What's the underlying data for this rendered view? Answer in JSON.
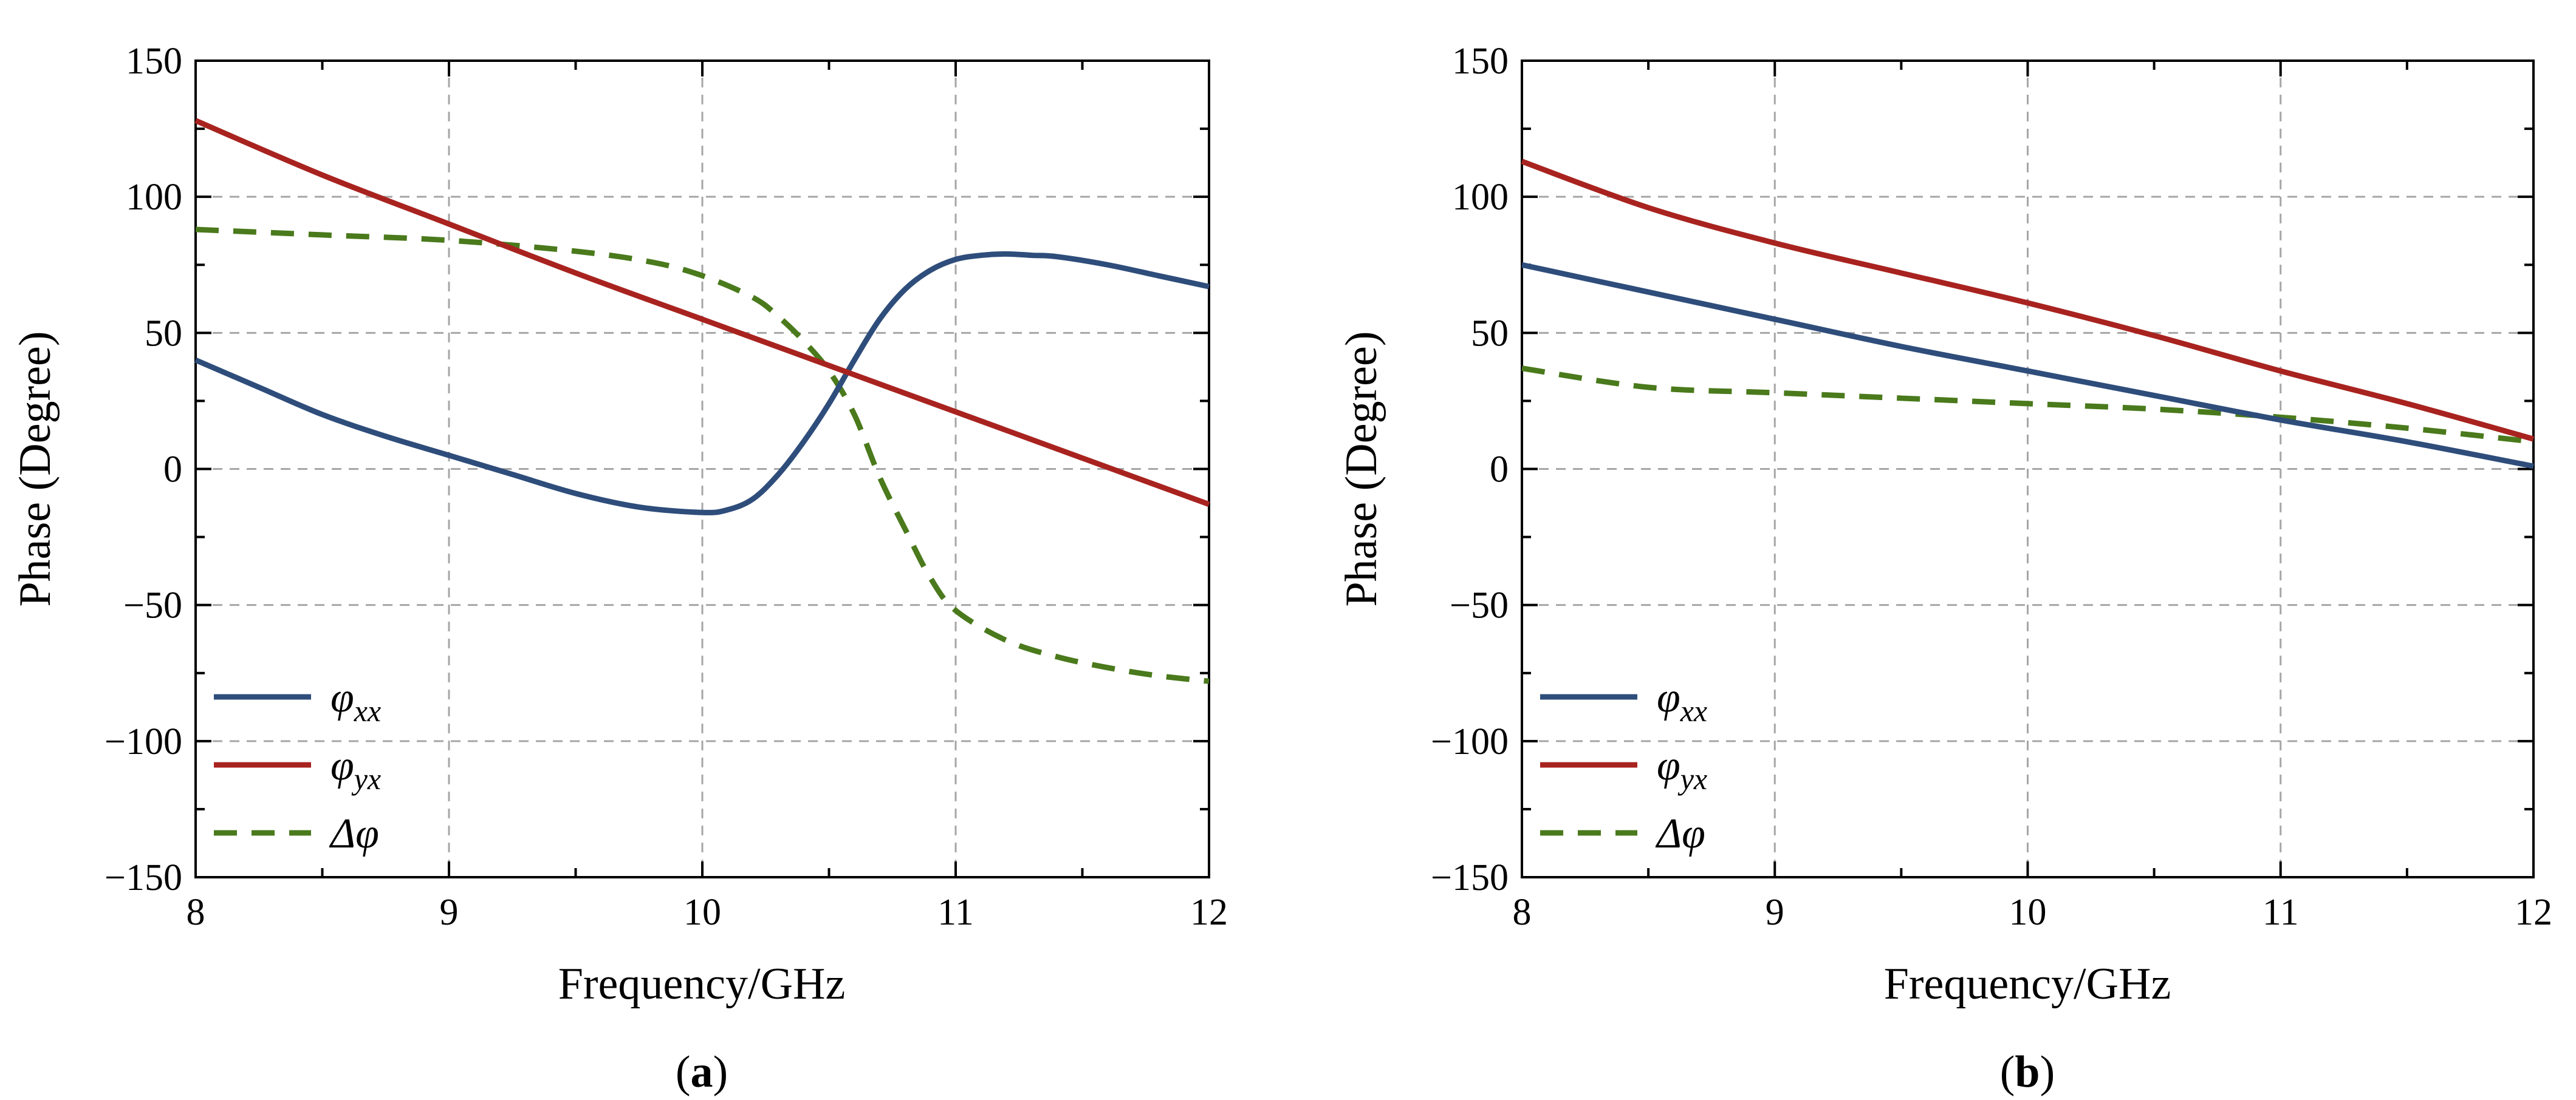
{
  "figure": {
    "colors": {
      "phi_xx": "#2e4d7b",
      "phi_yx": "#a8231f",
      "delta_phi": "#4a7a1c"
    }
  },
  "chart_data": [
    {
      "panel": "a",
      "panel_label": {
        "open": "(",
        "letter": "a",
        "close": ")"
      },
      "type": "line",
      "title": "",
      "xlabel": "Frequency/GHz",
      "ylabel": "Phase (Degree)",
      "xlim": [
        8,
        12
      ],
      "ylim": [
        -150,
        150
      ],
      "xticks": [
        8,
        9,
        10,
        11,
        12
      ],
      "yticks": [
        -150,
        -100,
        -50,
        0,
        50,
        100,
        150
      ],
      "x_tick_labels": [
        "8",
        "9",
        "10",
        "11",
        "12"
      ],
      "y_tick_labels": [
        "−150",
        "−100",
        "−50",
        "0",
        "50",
        "100",
        "150"
      ],
      "grid": true,
      "legend_location": "lower-left",
      "series": [
        {
          "name": "φxx",
          "symbol": "φ",
          "subscript": "xx",
          "style": "solid",
          "color": "#2e4d7b",
          "x": [
            8,
            8.25,
            8.5,
            8.75,
            9,
            9.25,
            9.5,
            9.75,
            10,
            10.1,
            10.2,
            10.3,
            10.4,
            10.5,
            10.6,
            10.7,
            10.8,
            10.9,
            11,
            11.1,
            11.2,
            11.3,
            11.4,
            11.6,
            11.8,
            12
          ],
          "y": [
            40,
            30,
            20,
            12,
            5,
            -2,
            -9,
            -14,
            -16,
            -15,
            -11,
            -2,
            10,
            24,
            40,
            55,
            66,
            73,
            77,
            78.5,
            79,
            78.5,
            78,
            75,
            71,
            67
          ]
        },
        {
          "name": "φyx",
          "symbol": "φ",
          "subscript": "yx",
          "style": "solid",
          "color": "#a8231f",
          "x": [
            8,
            8.5,
            9,
            9.5,
            10,
            10.5,
            11,
            11.5,
            12
          ],
          "y": [
            128,
            108,
            90,
            72,
            55,
            38,
            21,
            4,
            -13
          ]
        },
        {
          "name": "Δφ",
          "symbol": "Δφ",
          "subscript": "",
          "style": "dashed",
          "color": "#4a7a1c",
          "x": [
            8,
            8.5,
            9,
            9.5,
            9.8,
            10,
            10.2,
            10.3,
            10.4,
            10.5,
            10.6,
            10.7,
            10.8,
            10.9,
            11,
            11.2,
            11.4,
            11.6,
            11.8,
            12
          ],
          "y": [
            88,
            86,
            84,
            80,
            76,
            71,
            63,
            56,
            47,
            36,
            20,
            -3,
            -22,
            -40,
            -52,
            -63,
            -69,
            -73,
            -76,
            -78
          ]
        }
      ]
    },
    {
      "panel": "b",
      "panel_label": {
        "open": "(",
        "letter": "b",
        "close": ")"
      },
      "type": "line",
      "title": "",
      "xlabel": "Frequency/GHz",
      "ylabel": "Phase (Degree)",
      "xlim": [
        8,
        12
      ],
      "ylim": [
        -150,
        150
      ],
      "xticks": [
        8,
        9,
        10,
        11,
        12
      ],
      "yticks": [
        -150,
        -100,
        -50,
        0,
        50,
        100,
        150
      ],
      "x_tick_labels": [
        "8",
        "9",
        "10",
        "11",
        "12"
      ],
      "y_tick_labels": [
        "−150",
        "−100",
        "−50",
        "0",
        "50",
        "100",
        "150"
      ],
      "grid": true,
      "legend_location": "lower-left",
      "series": [
        {
          "name": "φxx",
          "symbol": "φ",
          "subscript": "xx",
          "style": "solid",
          "color": "#2e4d7b",
          "x": [
            8,
            8.5,
            9,
            9.5,
            10,
            10.5,
            11,
            11.5,
            12
          ],
          "y": [
            75,
            65,
            55,
            45,
            36,
            27,
            18,
            10,
            1
          ]
        },
        {
          "name": "φyx",
          "symbol": "φ",
          "subscript": "yx",
          "style": "solid",
          "color": "#a8231f",
          "x": [
            8,
            8.5,
            9,
            9.5,
            10,
            10.5,
            11,
            11.5,
            12
          ],
          "y": [
            113,
            96,
            83,
            72,
            61,
            49,
            36,
            24,
            11
          ]
        },
        {
          "name": "Δφ",
          "symbol": "Δφ",
          "subscript": "",
          "style": "dashed",
          "color": "#4a7a1c",
          "x": [
            8,
            8.5,
            9,
            9.5,
            10,
            10.5,
            11,
            11.5,
            12
          ],
          "y": [
            37,
            30,
            28,
            26,
            24,
            22,
            19,
            15,
            10
          ]
        }
      ]
    }
  ]
}
